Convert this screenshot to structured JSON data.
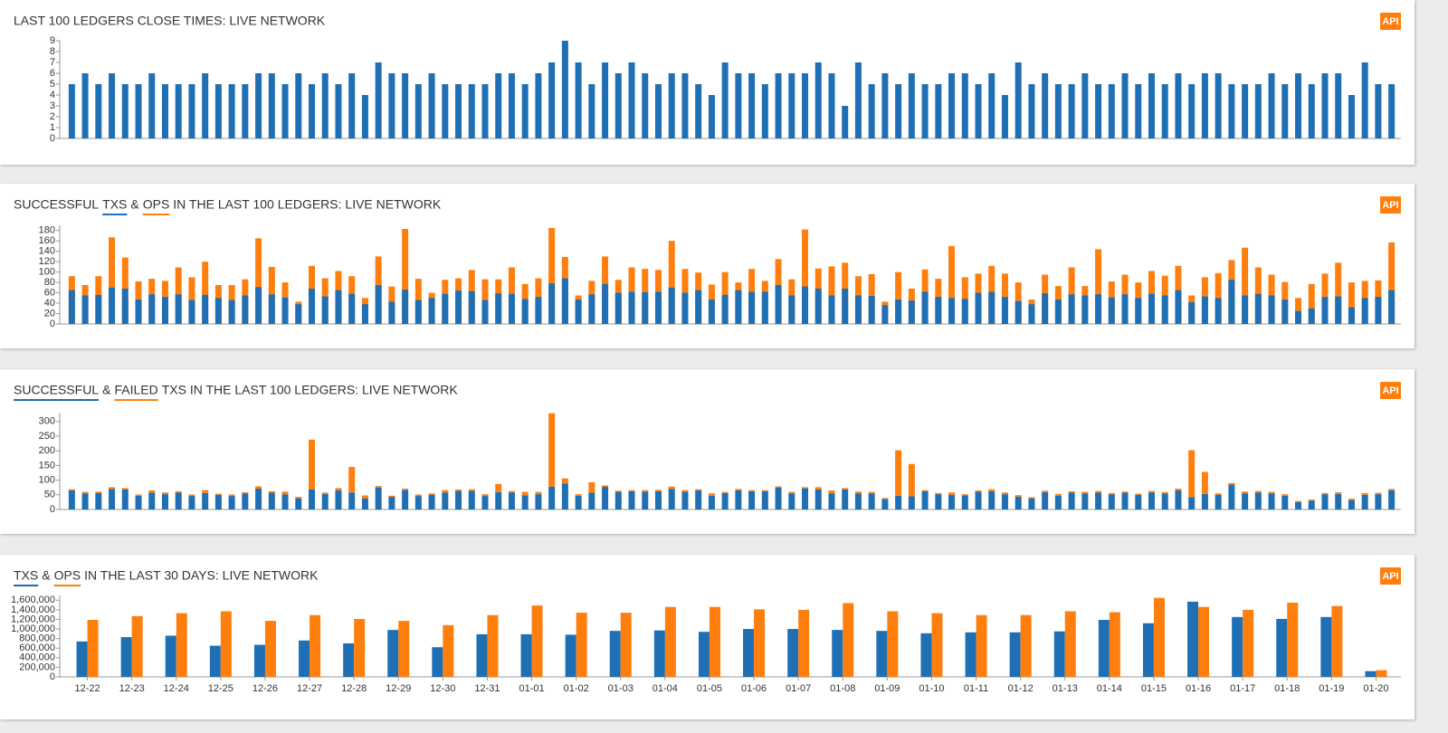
{
  "chart_data": [
    {
      "type": "bar",
      "title": "LAST 100 LEDGERS CLOSE TIMES: LIVE NETWORK",
      "badge": "API",
      "color": "#1f6fb4",
      "values": [
        5,
        6,
        5,
        6,
        5,
        5,
        6,
        5,
        5,
        5,
        6,
        5,
        5,
        5,
        6,
        6,
        5,
        6,
        5,
        6,
        5,
        6,
        4,
        7,
        6,
        6,
        5,
        6,
        5,
        5,
        5,
        5,
        6,
        6,
        5,
        6,
        7,
        9,
        7,
        5,
        7,
        6,
        7,
        6,
        5,
        6,
        6,
        5,
        4,
        7,
        6,
        6,
        5,
        6,
        6,
        6,
        7,
        6,
        3,
        7,
        5,
        6,
        5,
        6,
        5,
        5,
        6,
        6,
        5,
        6,
        4,
        7,
        5,
        6,
        5,
        5,
        6,
        5,
        5,
        6,
        5,
        6,
        5,
        6,
        5,
        6,
        6,
        5,
        5,
        5,
        6,
        5,
        6,
        5,
        6,
        6,
        4,
        7,
        5,
        5
      ],
      "ylim": [
        0,
        9
      ],
      "yticks": [
        0,
        1,
        2,
        3,
        4,
        5,
        6,
        7,
        8,
        9
      ]
    },
    {
      "type": "bar",
      "barmode": "overlay",
      "title_before": "SUCCESSFUL",
      "title_joiner": "&",
      "title_after": "IN THE LAST 100 LEDGERS: LIVE NETWORK",
      "badge": "API",
      "series": [
        {
          "name": "TXS",
          "color": "#1f6fb4",
          "values": [
            65,
            55,
            56,
            70,
            68,
            47,
            57,
            52,
            57,
            46,
            56,
            50,
            46,
            55,
            71,
            57,
            51,
            38,
            68,
            53,
            65,
            58,
            38,
            75,
            43,
            66,
            46,
            50,
            58,
            64,
            63,
            46,
            59,
            58,
            48,
            52,
            78,
            88,
            47,
            57,
            77,
            60,
            62,
            61,
            62,
            70,
            60,
            65,
            47,
            56,
            65,
            62,
            62,
            75,
            55,
            72,
            68,
            55,
            68,
            55,
            54,
            36,
            47,
            45,
            62,
            52,
            50,
            48,
            60,
            62,
            52,
            44,
            38,
            59,
            47,
            57,
            55,
            57,
            51,
            57,
            50,
            58,
            55,
            65,
            42,
            53,
            50,
            85,
            55,
            58,
            55,
            47,
            25,
            30,
            52,
            53,
            32,
            50,
            52,
            65
          ]
        },
        {
          "name": "OPS",
          "color": "#ff7f0e",
          "values": [
            92,
            75,
            92,
            167,
            128,
            82,
            87,
            83,
            109,
            90,
            120,
            75,
            75,
            86,
            165,
            110,
            80,
            43,
            112,
            88,
            102,
            92,
            50,
            130,
            72,
            183,
            87,
            60,
            85,
            88,
            104,
            86,
            86,
            109,
            77,
            88,
            185,
            129,
            55,
            83,
            130,
            85,
            109,
            106,
            104,
            160,
            106,
            99,
            76,
            100,
            80,
            106,
            83,
            125,
            86,
            182,
            107,
            111,
            118,
            92,
            96,
            43,
            100,
            68,
            105,
            87,
            150,
            90,
            97,
            112,
            97,
            80,
            47,
            95,
            73,
            109,
            73,
            144,
            82,
            95,
            80,
            102,
            93,
            112,
            55,
            90,
            98,
            123,
            147,
            109,
            95,
            81,
            50,
            77,
            97,
            118,
            80,
            83,
            84,
            157
          ]
        }
      ],
      "ylim": [
        0,
        190
      ],
      "yticks": [
        0,
        20,
        40,
        60,
        80,
        100,
        120,
        140,
        160,
        180
      ]
    },
    {
      "type": "bar",
      "barmode": "stack",
      "title_joiner": "&",
      "title_after": "TXS IN THE LAST 100 LEDGERS: LIVE NETWORK",
      "badge": "API",
      "series": [
        {
          "name": "SUCCESSFUL",
          "color": "#1f6fb4",
          "values": [
            65,
            55,
            56,
            70,
            68,
            47,
            57,
            52,
            57,
            46,
            56,
            50,
            46,
            55,
            71,
            57,
            51,
            38,
            68,
            53,
            65,
            58,
            38,
            75,
            43,
            66,
            46,
            50,
            58,
            64,
            63,
            46,
            59,
            58,
            48,
            52,
            78,
            88,
            47,
            57,
            77,
            60,
            62,
            61,
            62,
            70,
            60,
            65,
            47,
            56,
            65,
            62,
            62,
            75,
            55,
            72,
            68,
            55,
            68,
            55,
            54,
            36,
            47,
            45,
            62,
            52,
            50,
            48,
            60,
            62,
            52,
            44,
            38,
            59,
            47,
            57,
            55,
            57,
            51,
            57,
            50,
            58,
            55,
            65,
            42,
            53,
            50,
            85,
            55,
            58,
            55,
            47,
            25,
            30,
            52,
            53,
            32,
            50,
            52,
            65
          ]
        },
        {
          "name": "FAILED",
          "color": "#ff7f0e",
          "values": [
            4,
            5,
            5,
            6,
            5,
            4,
            8,
            6,
            5,
            5,
            10,
            4,
            5,
            4,
            8,
            5,
            10,
            5,
            170,
            5,
            8,
            87,
            10,
            5,
            4,
            5,
            5,
            5,
            8,
            4,
            6,
            6,
            28,
            5,
            12,
            8,
            250,
            18,
            5,
            36,
            5,
            4,
            4,
            5,
            5,
            8,
            6,
            4,
            8,
            4,
            5,
            4,
            4,
            4,
            5,
            4,
            8,
            10,
            5,
            6,
            6,
            3,
            155,
            110,
            4,
            4,
            8,
            4,
            5,
            7,
            6,
            5,
            4,
            5,
            6,
            5,
            5,
            6,
            5,
            4,
            4,
            5,
            4,
            6,
            160,
            75,
            5,
            5,
            6,
            5,
            5,
            5,
            4,
            4,
            4,
            6,
            5,
            6,
            5,
            5
          ]
        }
      ],
      "ylim": [
        0,
        330
      ],
      "yticks": [
        0,
        50,
        100,
        150,
        200,
        250,
        300
      ]
    },
    {
      "type": "bar",
      "barmode": "group",
      "title_joiner": "&",
      "title_after": "IN THE LAST 30 DAYS: LIVE NETWORK",
      "badge": "API",
      "categories": [
        "12-22",
        "12-23",
        "12-24",
        "12-25",
        "12-26",
        "12-27",
        "12-28",
        "12-29",
        "12-30",
        "12-31",
        "01-01",
        "01-02",
        "01-03",
        "01-04",
        "01-05",
        "01-06",
        "01-07",
        "01-08",
        "01-09",
        "01-10",
        "01-11",
        "01-12",
        "01-13",
        "01-14",
        "01-15",
        "01-16",
        "01-17",
        "01-18",
        "01-19",
        "01-20"
      ],
      "series": [
        {
          "name": "TXS",
          "color": "#1f6fb4",
          "values": [
            740000,
            830000,
            860000,
            650000,
            670000,
            760000,
            700000,
            980000,
            620000,
            890000,
            890000,
            880000,
            960000,
            970000,
            940000,
            1000000,
            1000000,
            980000,
            960000,
            910000,
            930000,
            930000,
            950000,
            1190000,
            1120000,
            1570000,
            1250000,
            1210000,
            1250000,
            120000
          ]
        },
        {
          "name": "OPS",
          "color": "#ff7f0e",
          "values": [
            1190000,
            1270000,
            1330000,
            1370000,
            1170000,
            1290000,
            1210000,
            1170000,
            1080000,
            1290000,
            1490000,
            1340000,
            1340000,
            1460000,
            1460000,
            1410000,
            1400000,
            1540000,
            1370000,
            1330000,
            1290000,
            1290000,
            1370000,
            1350000,
            1650000,
            1460000,
            1400000,
            1550000,
            1480000,
            140000
          ]
        }
      ],
      "ylim": [
        0,
        1700000
      ],
      "yticks": [
        0,
        {
          "value": 200000,
          "label": "200,000"
        },
        {
          "value": 400000,
          "label": "400,000"
        },
        {
          "value": 600000,
          "label": "600,000"
        },
        {
          "value": 800000,
          "label": "800,000"
        },
        {
          "value": 1000000,
          "label": "1,000,000"
        },
        {
          "value": 1200000,
          "label": "1,200,000"
        },
        {
          "value": 1400000,
          "label": "1,400,000"
        },
        {
          "value": 1600000,
          "label": "1,600,000"
        }
      ]
    }
  ]
}
